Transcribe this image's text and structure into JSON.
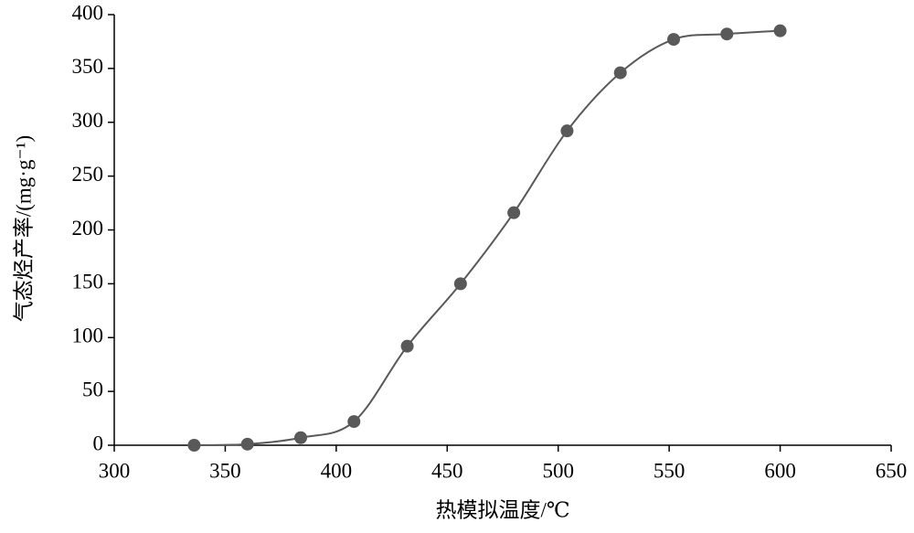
{
  "chart_data": {
    "type": "line",
    "smooth": true,
    "x_label": "热模拟温度/℃",
    "y_label": "气态烃产率/(mg·g⁻¹)",
    "x": [
      336,
      360,
      384,
      408,
      432,
      456,
      480,
      504,
      528,
      552,
      576,
      600
    ],
    "series": [
      {
        "color": "#595959",
        "values": [
          0,
          1,
          7,
          22,
          92,
          150,
          216,
          292,
          346,
          377,
          382,
          385
        ]
      }
    ],
    "xlim": [
      300,
      650
    ],
    "xticks": [
      300,
      350,
      400,
      450,
      500,
      550,
      600,
      650
    ],
    "ylim": [
      0,
      400
    ],
    "yticks": [
      0,
      50,
      100,
      150,
      200,
      250,
      300,
      350,
      400
    ]
  }
}
